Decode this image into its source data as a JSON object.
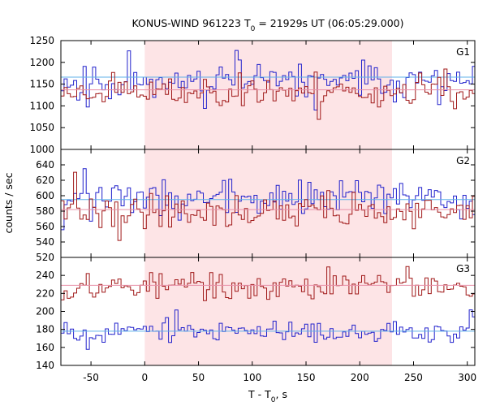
{
  "chart_data": {
    "type": "line",
    "title": "KONUS-WIND 961223 T",
    "title_sub": "0",
    "title_rest": " = 21929s UT (06:05:29.000)",
    "xlabel": "T - T",
    "xlabel_sub": "0",
    "xlabel_rest": ", s",
    "ylabel": "counts / sec",
    "xlim": [
      -78,
      307
    ],
    "xticks": [
      -50,
      0,
      50,
      100,
      150,
      200,
      250,
      300
    ],
    "shaded_interval": [
      0,
      230
    ],
    "grid": false,
    "bin_width": 2.944,
    "colors": {
      "shade": "#fde4e6",
      "blue_series": "#2222cc",
      "red_series": "#a01818",
      "blue_background": "#5fb0e8",
      "red_background": "#e890a8"
    },
    "panels": [
      {
        "label": "G1",
        "ylim": [
          1000,
          1250
        ],
        "yticks": [
          1000,
          1050,
          1100,
          1150,
          1200,
          1250
        ],
        "series": [
          {
            "color": "blue",
            "mean": 1157,
            "amplitude": 22,
            "seed": 11,
            "background": 1166
          },
          {
            "color": "red",
            "mean": 1133,
            "amplitude": 20,
            "seed": 23,
            "background": 1137
          }
        ]
      },
      {
        "label": "G2",
        "ylim": [
          520,
          660
        ],
        "yticks": [
          520,
          540,
          560,
          580,
          600,
          620,
          640
        ],
        "series": [
          {
            "color": "blue",
            "mean": 597,
            "amplitude": 14,
            "seed": 37,
            "background": 595
          },
          {
            "color": "red",
            "mean": 580,
            "amplitude": 13,
            "seed": 41,
            "background": 582
          }
        ]
      },
      {
        "label": "G3",
        "ylim": [
          140,
          260
        ],
        "yticks": [
          140,
          160,
          180,
          200,
          220,
          240
        ],
        "series": [
          {
            "color": "red",
            "mean": 228,
            "amplitude": 9,
            "seed": 53,
            "background": 229
          },
          {
            "color": "blue",
            "mean": 178,
            "amplitude": 7,
            "seed": 67,
            "background": 178
          }
        ]
      }
    ]
  }
}
